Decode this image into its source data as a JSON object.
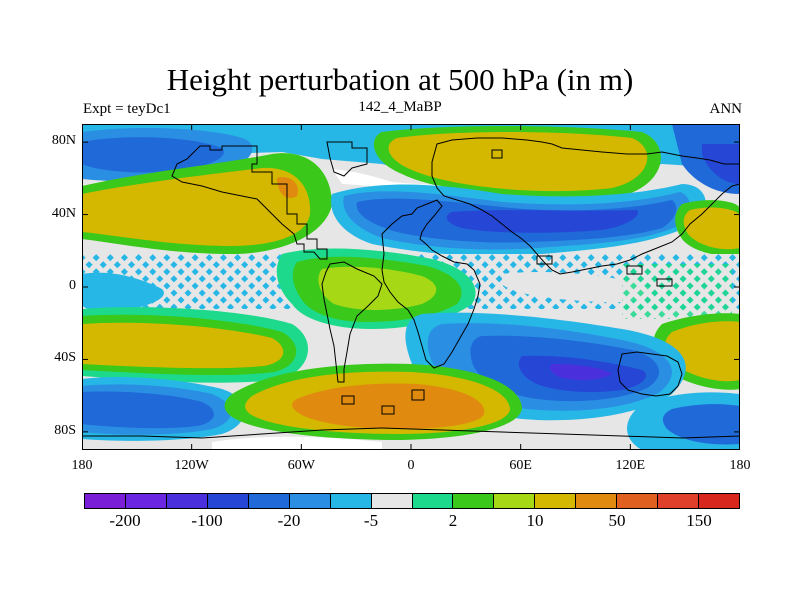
{
  "title": "Height perturbation at 500 hPa (in m)",
  "subtitle_left": "Expt = teyDc1",
  "subtitle_center": "142_4_MaBP",
  "subtitle_right": "ANN",
  "y_ticks": [
    {
      "label": "80N",
      "lat": 80
    },
    {
      "label": "40N",
      "lat": 40
    },
    {
      "label": "0",
      "lat": 0
    },
    {
      "label": "40S",
      "lat": -40
    },
    {
      "label": "80S",
      "lat": -80
    }
  ],
  "x_ticks": [
    {
      "label": "180",
      "lon": -180
    },
    {
      "label": "120W",
      "lon": -120
    },
    {
      "label": "60W",
      "lon": -60
    },
    {
      "label": "0",
      "lon": 0
    },
    {
      "label": "60E",
      "lon": 60
    },
    {
      "label": "120E",
      "lon": 120
    },
    {
      "label": "180",
      "lon": 180
    }
  ],
  "colorbar": {
    "colors": [
      "#7a1ed8",
      "#6a26e0",
      "#4a30dd",
      "#2646d6",
      "#1f69d9",
      "#2a8ee3",
      "#27b7e6",
      "#e6e6e6",
      "#1dd98b",
      "#3ac81b",
      "#a6d816",
      "#d4b800",
      "#e08a10",
      "#e06020",
      "#e0402a",
      "#d8281e"
    ],
    "labels": [
      {
        "text": "-200",
        "boundary": 1
      },
      {
        "text": "-100",
        "boundary": 3
      },
      {
        "text": "-20",
        "boundary": 5
      },
      {
        "text": "-5",
        "boundary": 7
      },
      {
        "text": "2",
        "boundary": 9
      },
      {
        "text": "10",
        "boundary": 11
      },
      {
        "text": "50",
        "boundary": 13
      },
      {
        "text": "150",
        "boundary": 15
      }
    ]
  }
}
